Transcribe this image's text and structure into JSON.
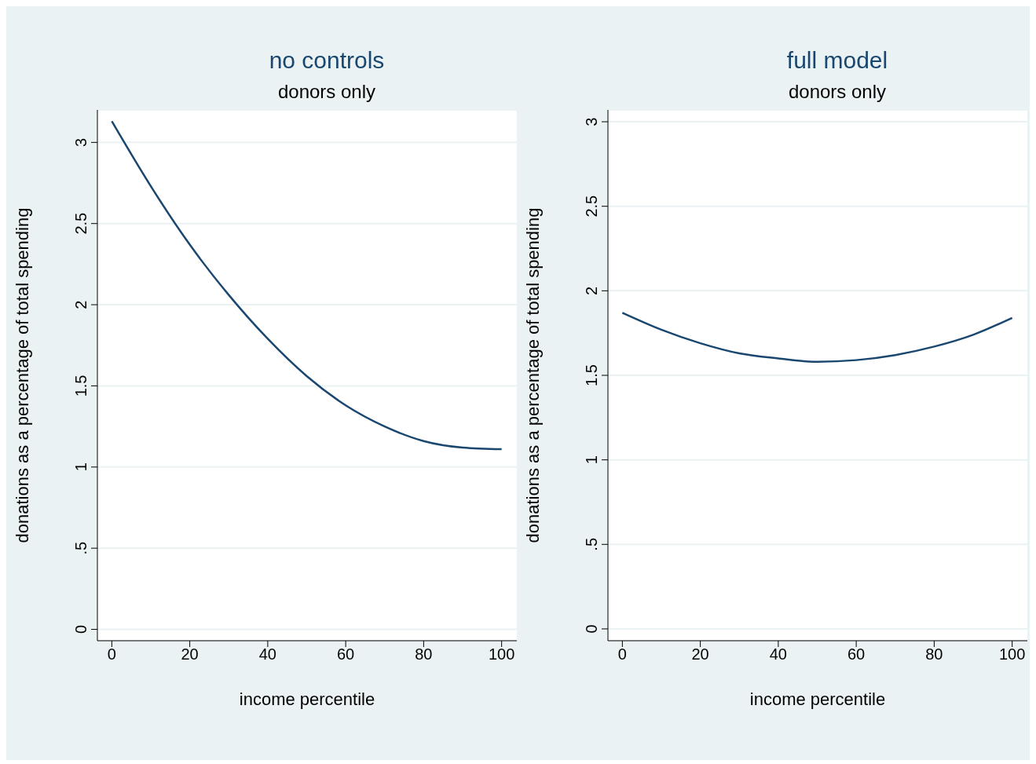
{
  "chart_data": [
    {
      "type": "line",
      "title": "no controls",
      "subtitle": "donors only",
      "xlabel": "income percentile",
      "ylabel": "donations as a percentage of total spending",
      "x": [
        0,
        10,
        20,
        30,
        40,
        50,
        60,
        70,
        80,
        90,
        100
      ],
      "series": [
        {
          "color": "#1a476f",
          "values": [
            3.13,
            2.73,
            2.37,
            2.06,
            1.79,
            1.56,
            1.38,
            1.25,
            1.16,
            1.12,
            1.11
          ]
        }
      ],
      "xlim": [
        -3.7,
        103.9
      ],
      "xticks": [
        0,
        20,
        40,
        60,
        80,
        100
      ],
      "ylim": [
        -0.07,
        3.2
      ],
      "yticks": [
        0,
        {
          "value": 0.5,
          "label": ".5"
        },
        1,
        1.5,
        2,
        2.5,
        3
      ],
      "grid": "y",
      "legend": false
    },
    {
      "type": "line",
      "title": "full model",
      "subtitle": "donors only",
      "xlabel": "income percentile",
      "ylabel": "donations as a percentage of total spending",
      "x": [
        0,
        10,
        20,
        30,
        40,
        50,
        60,
        70,
        80,
        90,
        100
      ],
      "series": [
        {
          "color": "#1a476f",
          "values": [
            1.87,
            1.77,
            1.69,
            1.63,
            1.6,
            1.58,
            1.59,
            1.62,
            1.67,
            1.74,
            1.84
          ]
        }
      ],
      "xlim": [
        -3.7,
        103.9
      ],
      "xticks": [
        0,
        20,
        40,
        60,
        80,
        100
      ],
      "ylim": [
        -0.07,
        3.07
      ],
      "yticks": [
        0,
        {
          "value": 0.5,
          "label": ".5"
        },
        1,
        1.5,
        2,
        2.5,
        3
      ],
      "grid": "y",
      "legend": false
    }
  ]
}
